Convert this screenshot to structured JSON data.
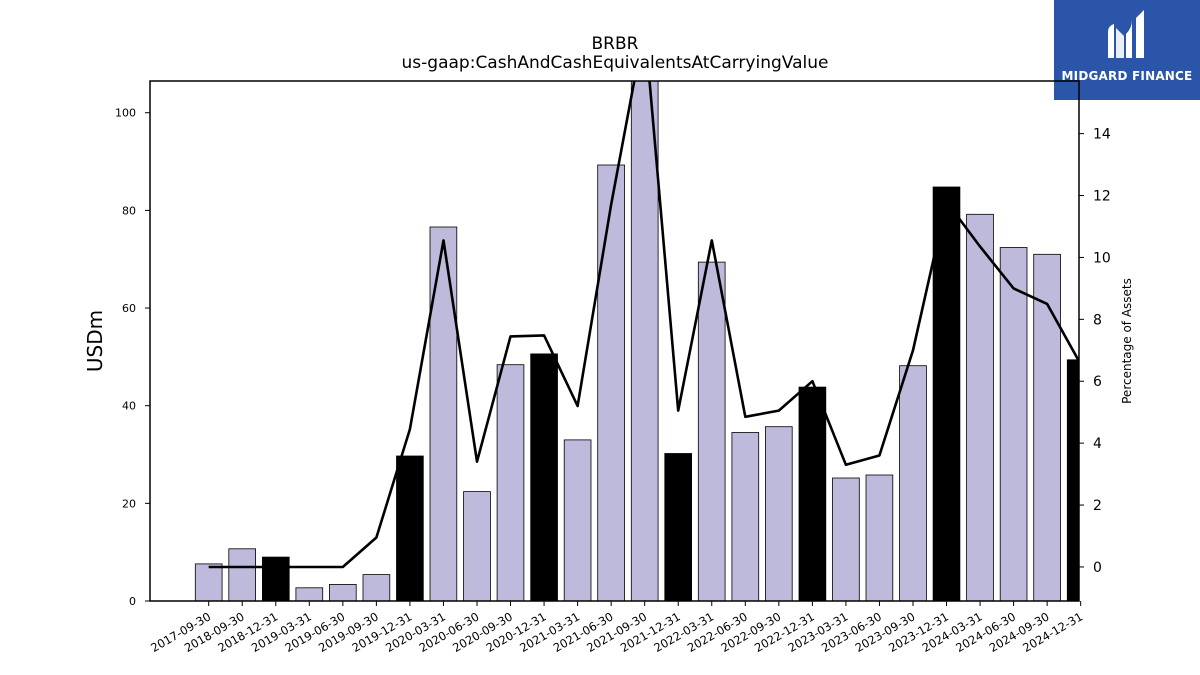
{
  "brand": {
    "name": "MIDGARD FINANCE",
    "bg_color": "#2b55a8"
  },
  "chart_data": {
    "type": "bar",
    "title": "BRBR",
    "subtitle": "us-gaap:CashAndCashEquivalentsAtCarryingValue",
    "ylabel": "USDm",
    "y2label": "Percentage of Assets",
    "ylim": [
      0,
      106.5
    ],
    "y2lim": [
      -1.1,
      15.7
    ],
    "yticks": [
      0,
      20,
      40,
      60,
      80,
      100
    ],
    "y2ticks": [
      0,
      2,
      4,
      6,
      8,
      10,
      12,
      14
    ],
    "categories": [
      "2017-09-30",
      "2018-09-30",
      "2018-12-31",
      "2019-03-31",
      "2019-06-30",
      "2019-09-30",
      "2019-12-31",
      "2020-03-31",
      "2020-06-30",
      "2020-09-30",
      "2020-12-31",
      "2021-03-31",
      "2021-06-30",
      "2021-09-30",
      "2021-12-31",
      "2022-03-31",
      "2022-06-30",
      "2022-09-30",
      "2022-12-31",
      "2023-03-31",
      "2023-06-30",
      "2023-09-30",
      "2023-12-31",
      "2024-03-31",
      "2024-06-30",
      "2024-09-30",
      "2024-12-31"
    ],
    "series": [
      {
        "kind": "bar",
        "values": [
          7.6,
          10.7,
          9.0,
          2.7,
          3.4,
          5.4,
          29.7,
          76.6,
          22.4,
          48.4,
          50.6,
          33.0,
          89.3,
          108.0,
          30.2,
          69.4,
          34.5,
          35.7,
          43.8,
          25.2,
          25.8,
          48.2,
          84.8,
          79.2,
          72.4,
          71.0,
          49.4
        ],
        "highlight": [
          false,
          false,
          true,
          false,
          false,
          false,
          true,
          false,
          false,
          false,
          true,
          false,
          false,
          false,
          true,
          false,
          false,
          false,
          true,
          false,
          false,
          false,
          true,
          false,
          false,
          false,
          true
        ],
        "color": "#bdbadb",
        "highlight_color": "#000000"
      },
      {
        "kind": "line",
        "axis": "right",
        "values": [
          0.0,
          0.0,
          0.0,
          0.0,
          0.0,
          0.95,
          4.45,
          10.55,
          3.4,
          7.45,
          7.48,
          5.2,
          11.7,
          17.5,
          5.05,
          10.55,
          4.85,
          5.05,
          6.0,
          3.3,
          3.6,
          7.0,
          11.8,
          10.35,
          9.0,
          8.5,
          6.55
        ],
        "color": "#000000"
      }
    ],
    "grid": false,
    "legend": "none"
  }
}
